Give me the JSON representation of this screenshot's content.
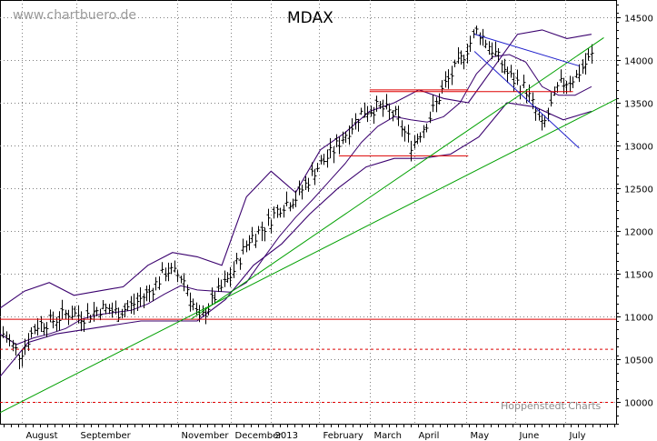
{
  "watermark": "www.chartbuero.de",
  "source_label": "Hoppenstedt Charts",
  "colors": {
    "price_bars": "#000000",
    "bollinger_bands": "#3a006e",
    "trend_lines": "#00a000",
    "resistance_lines": "#dd0000",
    "channel_lines": "#2222cc",
    "grid": "#7f7f7f"
  },
  "chart_data": {
    "type": "ohlc",
    "title": "MDAX",
    "ylim": [
      9750,
      14700
    ],
    "yticks": [
      10000,
      10500,
      11000,
      11500,
      12000,
      12500,
      13000,
      13500,
      14000,
      14500
    ],
    "ytick_labels": [
      "10000",
      "10500",
      "11000",
      "11500",
      "12000",
      "12500",
      "13000",
      "13500",
      "14000",
      "14500"
    ],
    "xtick_labels": [
      "August",
      "September",
      "November",
      "December",
      "2013",
      "February",
      "March",
      "April",
      "May",
      "June",
      "July"
    ],
    "legend": "none",
    "grid": true,
    "series_close": {
      "name": "",
      "approx_weekly_closes": [
        10800,
        10550,
        10900,
        10950,
        11050,
        11000,
        11100,
        11050,
        11150,
        11300,
        11550,
        11450,
        10950,
        11250,
        11500,
        11900,
        12050,
        12300,
        12400,
        12700,
        12900,
        13150,
        13400,
        13450,
        13350,
        13000,
        13300,
        13700,
        14000,
        14350,
        14100,
        13800,
        13650,
        13200,
        13700,
        13800,
        14050
      ]
    },
    "bollinger_upper_approx": [
      11100,
      11300,
      11400,
      11250,
      11300,
      11350,
      11600,
      11750,
      11700,
      11600,
      12400,
      12700,
      12450,
      12950,
      13150,
      13400,
      13500,
      13650,
      13550,
      13500,
      13900,
      14300,
      14350,
      14250,
      14300
    ],
    "bollinger_lower_approx": [
      10300,
      10700,
      10800,
      10850,
      10900,
      10950,
      10950,
      10950,
      11200,
      11600,
      11850,
      12200,
      12500,
      12750,
      12850,
      12850,
      12900,
      13100,
      13500,
      13450,
      13300,
      13400
    ],
    "horizontal_lines": [
      {
        "style": "solid",
        "value": 10970
      },
      {
        "style": "dashed",
        "value": 10620
      },
      {
        "style": "dashed",
        "value": 10000
      },
      {
        "style": "solid",
        "value": 13630
      },
      {
        "style": "solid",
        "value": 12880
      },
      {
        "style": "solid",
        "value": 13650
      }
    ],
    "trend_lines": [
      {
        "from": [
          0,
          9880
        ],
        "to": [
          1,
          13540
        ]
      },
      {
        "from": [
          0.31,
          10970
        ],
        "to": [
          0.98,
          14260
        ]
      }
    ],
    "channel_lines": [
      {
        "from": [
          0.77,
          14300
        ],
        "to": [
          0.94,
          13930
        ]
      },
      {
        "from": [
          0.77,
          14100
        ],
        "to": [
          0.94,
          12970
        ]
      }
    ],
    "ticks_top_labels_note": ""
  }
}
